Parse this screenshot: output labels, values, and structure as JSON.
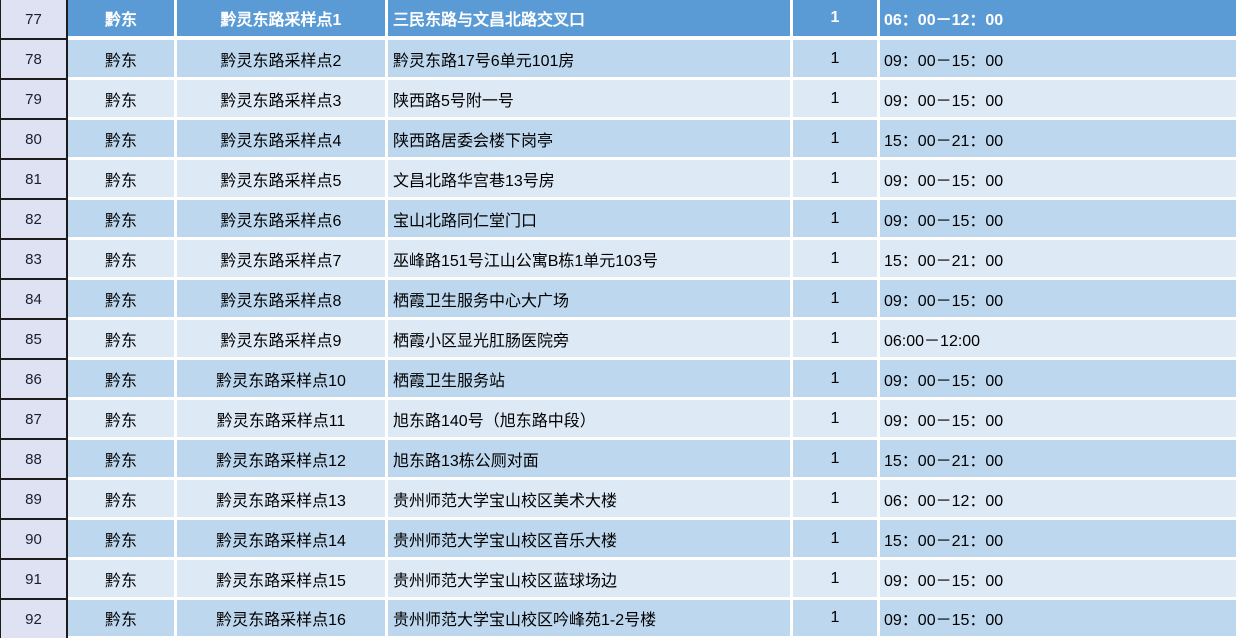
{
  "colors": {
    "header_row_bg": "#5b9bd5",
    "band_light": "#bdd7ee",
    "band_lighter": "#dee9f6",
    "row_header_bg": "#dfe2f2"
  },
  "table": {
    "rows": [
      {
        "row_num": "77",
        "region": "黔东",
        "site": "黔灵东路采样点1",
        "address": "三民东路与文昌北路交叉口",
        "count": "1",
        "time": "06：00－12：00"
      },
      {
        "row_num": "78",
        "region": "黔东",
        "site": "黔灵东路采样点2",
        "address": "黔灵东路17号6单元101房",
        "count": "1",
        "time": "09：00－15：00"
      },
      {
        "row_num": "79",
        "region": "黔东",
        "site": "黔灵东路采样点3",
        "address": "陕西路5号附一号",
        "count": "1",
        "time": "09：00－15：00"
      },
      {
        "row_num": "80",
        "region": "黔东",
        "site": "黔灵东路采样点4",
        "address": "陕西路居委会楼下岗亭",
        "count": "1",
        "time": "15：00－21：00"
      },
      {
        "row_num": "81",
        "region": "黔东",
        "site": "黔灵东路采样点5",
        "address": "文昌北路华宫巷13号房",
        "count": "1",
        "time": "09：00－15：00"
      },
      {
        "row_num": "82",
        "region": "黔东",
        "site": "黔灵东路采样点6",
        "address": "宝山北路同仁堂门口",
        "count": "1",
        "time": "09：00－15：00"
      },
      {
        "row_num": "83",
        "region": "黔东",
        "site": "黔灵东路采样点7",
        "address": "巫峰路151号江山公寓B栋1单元103号",
        "count": "1",
        "time": "15：00－21：00"
      },
      {
        "row_num": "84",
        "region": "黔东",
        "site": "黔灵东路采样点8",
        "address": "栖霞卫生服务中心大广场",
        "count": "1",
        "time": "09：00－15：00"
      },
      {
        "row_num": "85",
        "region": "黔东",
        "site": "黔灵东路采样点9",
        "address": "栖霞小区显光肛肠医院旁",
        "count": "1",
        "time": "06:00－12:00"
      },
      {
        "row_num": "86",
        "region": "黔东",
        "site": "黔灵东路采样点10",
        "address": "栖霞卫生服务站",
        "count": "1",
        "time": "09：00－15：00"
      },
      {
        "row_num": "87",
        "region": "黔东",
        "site": "黔灵东路采样点11",
        "address": "旭东路140号（旭东路中段）",
        "count": "1",
        "time": "09：00－15：00"
      },
      {
        "row_num": "88",
        "region": "黔东",
        "site": "黔灵东路采样点12",
        "address": "旭东路13栋公厕对面",
        "count": "1",
        "time": "15：00－21：00"
      },
      {
        "row_num": "89",
        "region": "黔东",
        "site": "黔灵东路采样点13",
        "address": "贵州师范大学宝山校区美术大楼",
        "count": "1",
        "time": "06：00－12：00"
      },
      {
        "row_num": "90",
        "region": "黔东",
        "site": "黔灵东路采样点14",
        "address": "贵州师范大学宝山校区音乐大楼",
        "count": "1",
        "time": "15：00－21：00"
      },
      {
        "row_num": "91",
        "region": "黔东",
        "site": "黔灵东路采样点15",
        "address": "贵州师范大学宝山校区蓝球场边",
        "count": "1",
        "time": "09：00－15：00"
      },
      {
        "row_num": "92",
        "region": "黔东",
        "site": "黔灵东路采样点16",
        "address": "贵州师范大学宝山校区吟峰苑1-2号楼",
        "count": "1",
        "time": "09：00－15：00"
      }
    ]
  }
}
